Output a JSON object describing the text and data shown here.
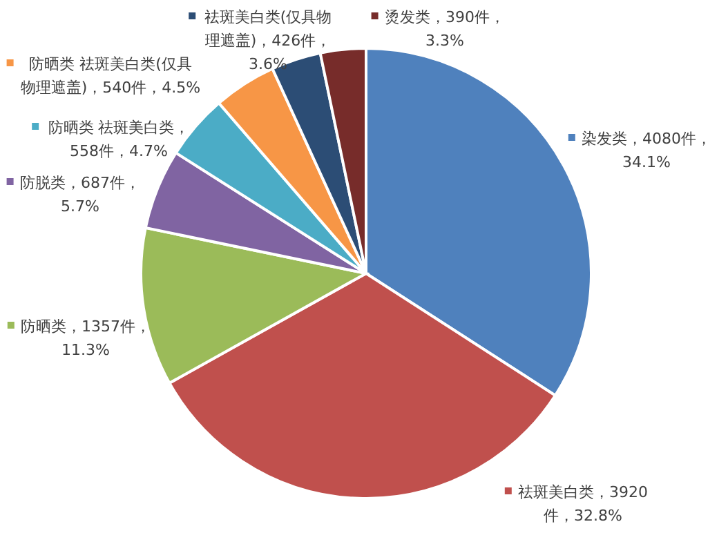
{
  "chart_data": {
    "type": "pie",
    "categories": [
      "染发类",
      "祛斑美白类",
      "防晒类",
      "防脱类",
      "防晒类 祛斑美白类",
      "防晒类  祛斑美白类(仅具物理遮盖)",
      "祛斑美白类(仅具物理遮盖)",
      "烫发类"
    ],
    "values": [
      4080,
      3920,
      1357,
      687,
      558,
      540,
      426,
      390
    ],
    "value_labels": [
      "，4080件，34.1%",
      "，3920件，32.8%",
      "，1357件，11.3%",
      "，687件，5.7%",
      "，558件，4.7%",
      "，540件，4.5%",
      "，426件，3.6%",
      "，390件，3.3%"
    ],
    "legend": "left",
    "colors": [
      "#4f81bd",
      "#c0504d",
      "#9bbb59",
      "#8064a2",
      "#4bacc6",
      "#f79646",
      "#2c4d75",
      "#772c2a"
    ]
  }
}
